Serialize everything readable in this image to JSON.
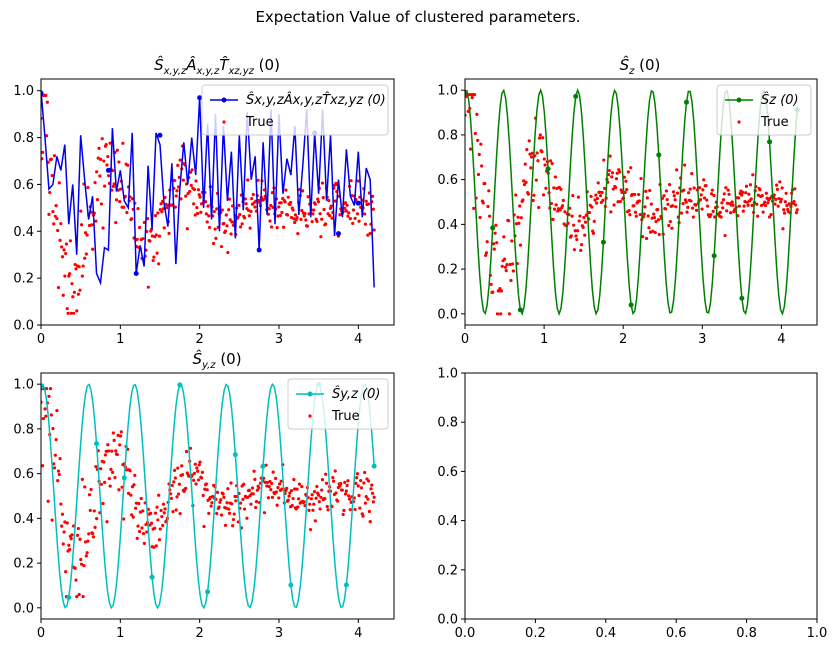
{
  "figure": {
    "suptitle": "Expectation Value of clustered parameters."
  },
  "colors": {
    "true_points": "#ff0000",
    "axes": "#000000",
    "legend_border": "#cccccc"
  },
  "chart_data": [
    {
      "id": "p1",
      "type": "line",
      "title": "Ŝx,y,zÂx,y,zT̂xz,yz (0)",
      "title_main": "Ŝ",
      "title_sub1": "x,y,z",
      "title_mid1": "Â",
      "title_sub2": "x,y,z",
      "title_mid2": "T̂",
      "title_sub3": "xz,yz",
      "title_tail": " (0)",
      "xlim": [
        0,
        4.45
      ],
      "ylim": [
        0,
        1.05
      ],
      "xticks": [
        "0",
        "1",
        "2",
        "3",
        "4"
      ],
      "yticks": [
        "0.0",
        "0.2",
        "0.4",
        "0.6",
        "0.8",
        "1.0"
      ],
      "line_color": "#0000ee",
      "legend": {
        "series_label": "Ŝx,y,zÂx,y,zT̂xz,yz (0)",
        "true_label": "True",
        "loc": "upper right"
      },
      "series": [
        {
          "name": "Ŝx,y,zÂx,y,zT̂xz,yz (0)",
          "x": [
            0.0,
            0.05,
            0.1,
            0.15,
            0.2,
            0.25,
            0.3,
            0.35,
            0.4,
            0.45,
            0.5,
            0.55,
            0.6,
            0.65,
            0.7,
            0.75,
            0.8,
            0.85,
            0.9,
            0.95,
            1.0,
            1.05,
            1.1,
            1.15,
            1.2,
            1.25,
            1.3,
            1.35,
            1.4,
            1.45,
            1.5,
            1.55,
            1.6,
            1.65,
            1.7,
            1.75,
            1.8,
            1.85,
            1.9,
            1.95,
            2.0,
            2.05,
            2.1,
            2.15,
            2.2,
            2.25,
            2.3,
            2.35,
            2.4,
            2.45,
            2.5,
            2.55,
            2.6,
            2.65,
            2.7,
            2.75,
            2.8,
            2.85,
            2.9,
            2.95,
            3.0,
            3.05,
            3.1,
            3.15,
            3.2,
            3.25,
            3.3,
            3.35,
            3.4,
            3.45,
            3.5,
            3.55,
            3.6,
            3.65,
            3.7,
            3.75,
            3.8,
            3.85,
            3.9,
            3.95,
            4.0,
            4.05,
            4.1,
            4.15,
            4.2
          ],
          "y": [
            1.0,
            0.8,
            0.58,
            0.6,
            0.72,
            0.66,
            0.77,
            0.43,
            0.6,
            0.3,
            0.81,
            0.62,
            0.45,
            0.55,
            0.22,
            0.18,
            0.33,
            0.32,
            0.84,
            0.57,
            0.66,
            0.53,
            0.5,
            0.82,
            0.22,
            0.34,
            0.25,
            0.68,
            0.41,
            0.82,
            0.77,
            0.52,
            0.42,
            0.69,
            0.26,
            0.58,
            0.78,
            0.6,
            0.8,
            0.64,
            0.97,
            0.5,
            0.86,
            0.45,
            0.9,
            0.4,
            0.85,
            0.53,
            0.74,
            0.37,
            0.81,
            0.49,
            0.91,
            0.62,
            0.72,
            0.32,
            0.78,
            0.47,
            0.92,
            0.43,
            0.9,
            0.56,
            0.71,
            0.64,
            0.85,
            0.47,
            0.68,
            0.92,
            0.46,
            0.82,
            0.56,
            0.92,
            0.53,
            0.81,
            0.38,
            0.62,
            0.46,
            0.75,
            0.55,
            0.51,
            0.74,
            0.46,
            0.67,
            0.62,
            0.16
          ],
          "markers_x": [
            0.0,
            0.85,
            1.2,
            1.5,
            2.0,
            2.75,
            3.45,
            3.75,
            4.0
          ],
          "markers_y": [
            0.99,
            0.66,
            0.22,
            0.81,
            0.97,
            0.32,
            0.82,
            0.39,
            0.52
          ]
        },
        {
          "name": "True",
          "x_start": 0.0,
          "x_end": 4.2,
          "count": 420,
          "model": "damped oscillation about 0.5",
          "y_range": [
            0.05,
            0.98
          ]
        }
      ]
    },
    {
      "id": "p2",
      "type": "line",
      "title": "Ŝz (0)",
      "title_main": "Ŝ",
      "title_sub1": "z",
      "title_tail": " (0)",
      "xlim": [
        0,
        4.45
      ],
      "ylim": [
        -0.05,
        1.05
      ],
      "xticks": [
        "0",
        "1",
        "2",
        "3",
        "4"
      ],
      "yticks": [
        "0.0",
        "0.2",
        "0.4",
        "0.6",
        "0.8",
        "1.0"
      ],
      "line_color": "#008000",
      "legend": {
        "series_label": "Ŝz (0)",
        "true_label": "True",
        "loc": "upper right"
      },
      "series": [
        {
          "name": "Ŝz (0)",
          "type": "oscillation",
          "period": 0.47,
          "phase_min": 0.25,
          "x_start": 0.0,
          "x_end": 4.2,
          "y_range": [
            0.0,
            1.0
          ]
        },
        {
          "name": "True",
          "x_start": 0.0,
          "x_end": 4.2,
          "count": 420,
          "model": "damped oscillation about 0.5",
          "y_range": [
            0.0,
            0.98
          ]
        }
      ]
    },
    {
      "id": "p3",
      "type": "line",
      "title": "Ŝy,z (0)",
      "title_main": "Ŝ",
      "title_sub1": "y,z",
      "title_tail": " (0)",
      "xlim": [
        0,
        4.45
      ],
      "ylim": [
        -0.05,
        1.05
      ],
      "xticks": [
        "0",
        "1",
        "2",
        "3",
        "4"
      ],
      "yticks": [
        "0.0",
        "0.2",
        "0.4",
        "0.6",
        "0.8",
        "1.0"
      ],
      "line_color": "#00bfbf",
      "legend": {
        "series_label": "Ŝy,z (0)",
        "true_label": "True",
        "loc": "upper right"
      },
      "series": [
        {
          "name": "Ŝy,z (0)",
          "type": "oscillation",
          "period": 0.58,
          "phase_min": 0.31,
          "x_start": 0.0,
          "x_end": 4.2,
          "y_range": [
            0.0,
            1.0
          ]
        },
        {
          "name": "True",
          "x_start": 0.0,
          "x_end": 4.2,
          "count": 420,
          "model": "damped oscillation about 0.5",
          "y_range": [
            0.05,
            0.98
          ]
        }
      ]
    },
    {
      "id": "p4",
      "type": "line",
      "title": "",
      "xlim": [
        0,
        1
      ],
      "ylim": [
        0,
        1
      ],
      "xticks": [
        "0.0",
        "0.2",
        "0.4",
        "0.6",
        "0.8",
        "1.0"
      ],
      "yticks": [
        "0.0",
        "0.2",
        "0.4",
        "0.6",
        "0.8",
        "1.0"
      ],
      "series": []
    }
  ]
}
